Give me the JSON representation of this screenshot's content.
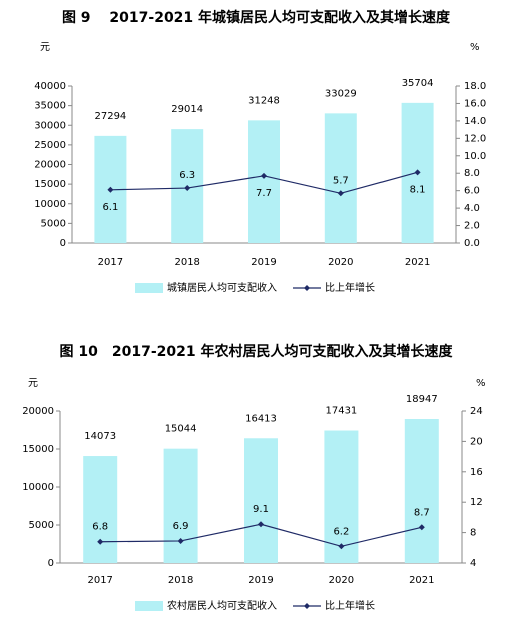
{
  "chart_data": [
    {
      "type": "bar-line",
      "title": "图 9　 2017-2021 年城镇居民人均可支配收入及其增长速度",
      "y_label": "元",
      "y2_label": "%",
      "categories": [
        "2017",
        "2018",
        "2019",
        "2020",
        "2021"
      ],
      "series": [
        {
          "name": "城镇居民人均可支配收入",
          "color": "#b3f0f5",
          "type": "bar",
          "values": [
            27294,
            29014,
            31248,
            33029,
            35704
          ]
        },
        {
          "name": "比上年增长",
          "color": "#1f2a66",
          "type": "line",
          "axis": "y2",
          "values": [
            6.1,
            6.3,
            7.7,
            5.7,
            8.1
          ]
        }
      ],
      "ylim": [
        0,
        40000
      ],
      "yticks": [
        0,
        5000,
        10000,
        15000,
        20000,
        25000,
        30000,
        35000,
        40000
      ],
      "y2lim": [
        0,
        18
      ],
      "y2ticks": [
        {
          "value": 0,
          "label": "0.0"
        },
        {
          "value": 2,
          "label": "2.0"
        },
        {
          "value": 4,
          "label": "4.0"
        },
        {
          "value": 6,
          "label": "6.0"
        },
        {
          "value": 8,
          "label": "8.0"
        },
        {
          "value": 10,
          "label": "10.0"
        },
        {
          "value": 12,
          "label": "12.0"
        },
        {
          "value": 14,
          "label": "14.0"
        },
        {
          "value": 16,
          "label": "16.0"
        },
        {
          "value": 18,
          "label": "18.0"
        }
      ],
      "legend": "bottom"
    },
    {
      "type": "bar-line",
      "title": "图 10　2017-2021 年农村居民人均可支配收入及其增长速度",
      "y_label": "元",
      "y2_label": "%",
      "categories": [
        "2017",
        "2018",
        "2019",
        "2020",
        "2021"
      ],
      "series": [
        {
          "name": "农村居民人均可支配收入",
          "color": "#b3f0f5",
          "type": "bar",
          "values": [
            14073,
            15044,
            16413,
            17431,
            18947
          ]
        },
        {
          "name": "比上年增长",
          "color": "#1f2a66",
          "type": "line",
          "axis": "y2",
          "values": [
            6.8,
            6.9,
            9.1,
            6.2,
            8.7
          ]
        }
      ],
      "ylim": [
        0,
        20000
      ],
      "yticks": [
        0,
        5000,
        10000,
        15000,
        20000
      ],
      "y2lim": [
        4,
        24
      ],
      "y2ticks": [
        4,
        8,
        12,
        16,
        20,
        24
      ],
      "legend": "bottom"
    }
  ]
}
